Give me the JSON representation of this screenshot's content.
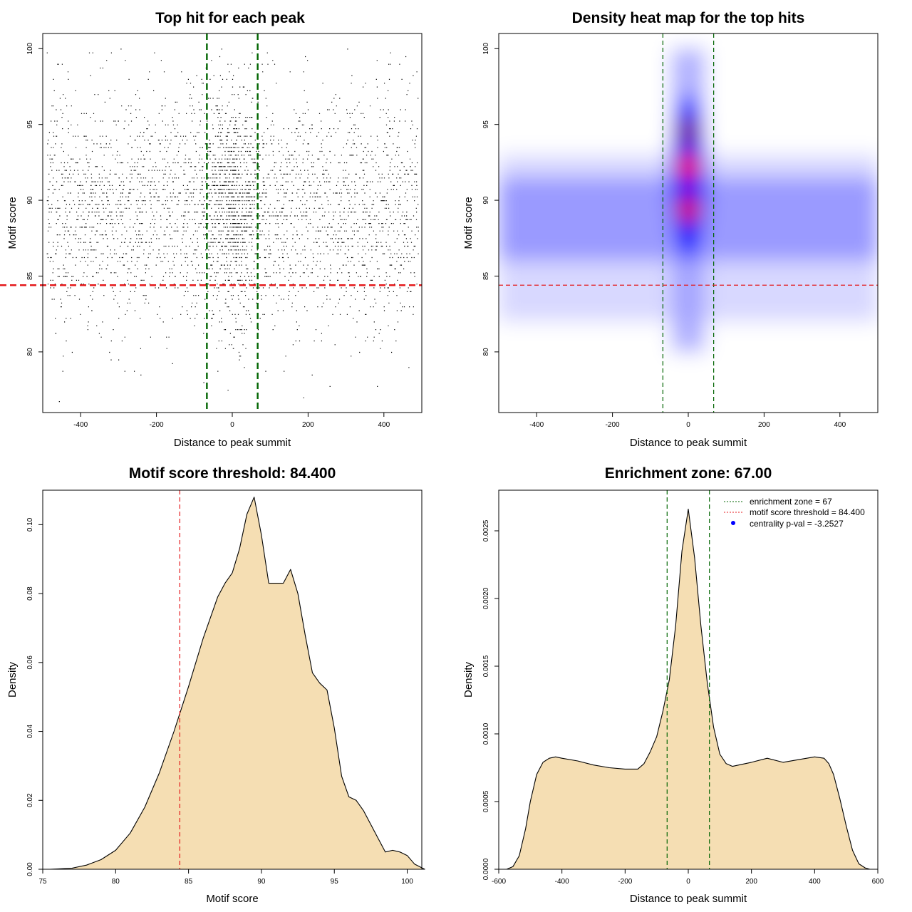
{
  "chart_data": [
    {
      "type": "scatter",
      "title": "Top hit for each peak",
      "xlabel": "Distance to peak summit",
      "ylabel": "Motif score",
      "xlim": [
        -500,
        500
      ],
      "ylim": [
        76,
        101
      ],
      "xticks": [
        -400,
        -200,
        0,
        200,
        400
      ],
      "yticks": [
        80,
        85,
        90,
        95,
        100
      ],
      "grid": false,
      "point_count_estimate": 12000,
      "score_distribution_mode": 89.5,
      "central_cluster_center": 0,
      "vlines": [
        -67,
        67
      ],
      "hline": 84.4,
      "vline_color": "#006400",
      "hline_color": "#e41a1c"
    },
    {
      "type": "heatmap",
      "title": "Density heat map for the top hits",
      "xlabel": "Distance to peak summit",
      "ylabel": "Motif score",
      "xlim": [
        -500,
        500
      ],
      "ylim": [
        76,
        101
      ],
      "xticks": [
        -400,
        -200,
        0,
        200,
        400
      ],
      "yticks": [
        80,
        85,
        90,
        95,
        100
      ],
      "grid": false,
      "color_scale": [
        "#ffffff",
        "#0000ff",
        "#ff0000"
      ],
      "hotspots": [
        {
          "x": 0,
          "y": 92.2,
          "intensity": 1.0
        },
        {
          "x": 0,
          "y": 89.4,
          "intensity": 0.9
        },
        {
          "x": 0,
          "y": 94.5,
          "intensity": 0.5
        }
      ],
      "vlines": [
        -67,
        67
      ],
      "hline": 84.4,
      "vline_color": "#006400",
      "hline_color": "#e41a1c"
    },
    {
      "type": "area",
      "title": "Motif score threshold: 84.400",
      "xlabel": "Motif score",
      "ylabel": "Density",
      "xlim": [
        75,
        101
      ],
      "ylim": [
        0,
        0.11
      ],
      "xticks": [
        75,
        80,
        85,
        90,
        95,
        100
      ],
      "yticks": [
        0.0,
        0.02,
        0.04,
        0.06,
        0.08,
        0.1
      ],
      "ytick_labels": [
        "0.00",
        "0.02",
        "0.04",
        "0.06",
        "0.08",
        "0.10"
      ],
      "grid": false,
      "fill_color": "#f5deb3",
      "x": [
        75.5,
        77,
        78,
        79,
        80,
        81,
        82,
        83,
        84,
        85,
        86,
        87,
        87.5,
        88,
        88.5,
        89,
        89.5,
        90,
        90.5,
        91,
        91.5,
        92,
        92.5,
        93,
        93.5,
        94,
        94.5,
        95,
        95.5,
        96,
        96.5,
        97,
        97.5,
        98,
        98.5,
        99,
        99.5,
        100,
        100.5,
        101.2
      ],
      "y": [
        0.0,
        0.0003,
        0.0012,
        0.0028,
        0.0055,
        0.0105,
        0.018,
        0.028,
        0.04,
        0.053,
        0.067,
        0.079,
        0.083,
        0.086,
        0.093,
        0.103,
        0.108,
        0.097,
        0.083,
        0.083,
        0.083,
        0.087,
        0.08,
        0.068,
        0.057,
        0.054,
        0.052,
        0.041,
        0.027,
        0.021,
        0.02,
        0.017,
        0.013,
        0.009,
        0.005,
        0.0055,
        0.005,
        0.004,
        0.0015,
        0.0
      ],
      "vline": 84.4,
      "vline_color": "#e41a1c"
    },
    {
      "type": "area",
      "title": "Enrichment zone: 67.00",
      "xlabel": "Distance to peak summit",
      "ylabel": "Density",
      "xlim": [
        -600,
        600
      ],
      "ylim": [
        0,
        0.0028
      ],
      "xticks": [
        -600,
        -400,
        -200,
        0,
        200,
        400,
        600
      ],
      "yticks": [
        0.0,
        0.0005,
        0.001,
        0.0015,
        0.002,
        0.0025
      ],
      "ytick_labels": [
        "0.0000",
        "0.0005",
        "0.0010",
        "0.0015",
        "0.0020",
        "0.0025"
      ],
      "grid": false,
      "fill_color": "#f5deb3",
      "x": [
        -575,
        -555,
        -535,
        -515,
        -500,
        -480,
        -460,
        -440,
        -420,
        -400,
        -350,
        -300,
        -250,
        -200,
        -160,
        -140,
        -120,
        -100,
        -80,
        -60,
        -40,
        -20,
        0,
        20,
        40,
        60,
        80,
        100,
        120,
        140,
        160,
        200,
        250,
        300,
        350,
        400,
        430,
        445,
        460,
        480,
        500,
        520,
        540,
        560,
        575
      ],
      "y": [
        0.0,
        2e-05,
        0.0001,
        0.0003,
        0.0005,
        0.0007,
        0.00079,
        0.00082,
        0.00083,
        0.00082,
        0.0008,
        0.00077,
        0.00075,
        0.00074,
        0.00074,
        0.00078,
        0.00087,
        0.00098,
        0.00117,
        0.0014,
        0.0018,
        0.00235,
        0.00266,
        0.0023,
        0.0018,
        0.00138,
        0.00105,
        0.00085,
        0.00078,
        0.00076,
        0.00077,
        0.00079,
        0.00082,
        0.00079,
        0.00081,
        0.00083,
        0.00082,
        0.00078,
        0.0007,
        0.00052,
        0.00032,
        0.00014,
        4e-05,
        1e-05,
        0.0
      ],
      "vlines": [
        -67,
        67
      ],
      "vline_color": "#006400",
      "legend_position": "top-right",
      "legend": [
        {
          "label": "enrichment zone = 67",
          "style": "dotted-line",
          "color": "#006400"
        },
        {
          "label": "motif score threshold = 84.400",
          "style": "dotted-line",
          "color": "#e41a1c"
        },
        {
          "label": "centrality p-val = -3.2527",
          "style": "point",
          "color": "#0000ff"
        }
      ]
    }
  ]
}
